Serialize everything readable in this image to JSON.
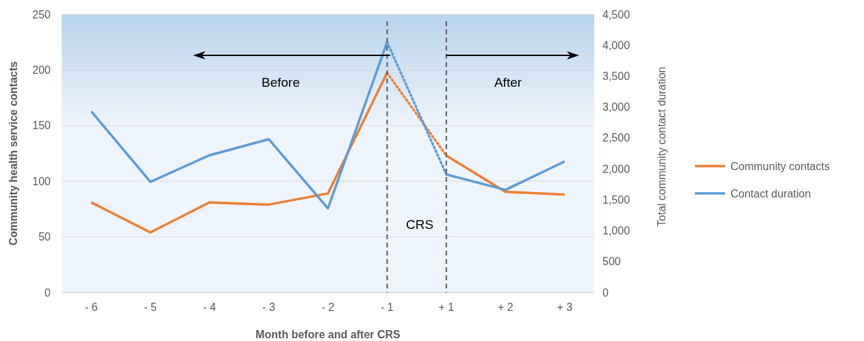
{
  "chart_data": {
    "type": "line",
    "xlabel": "Month before and after CRS",
    "ylabel": "Community health service contacts",
    "y2label": "Total community contact duration",
    "categories": [
      "- 6",
      "- 5",
      "- 4",
      "- 3",
      "- 2",
      "- 1",
      "+ 1",
      "+ 2",
      "+ 3"
    ],
    "series": [
      {
        "name": "Community contacts",
        "color": "#ed7d31",
        "values": [
          81,
          54,
          81,
          79,
          89,
          197.5,
          null,
          null,
          null
        ]
      },
      {
        "color": "#ed7d31",
        "values": [
          null,
          null,
          null,
          null,
          null,
          null,
          123,
          90.5,
          88
        ]
      },
      {
        "color": "#ed7d31",
        "line_style": "dotted",
        "values": [
          null,
          null,
          null,
          null,
          null,
          197.5,
          123,
          null,
          null
        ]
      },
      {
        "name": "Contact duration",
        "color": "#5b9bd5",
        "axis": "y2",
        "values": [
          2930,
          1790,
          2220,
          2480,
          1360,
          4050,
          null,
          null,
          null
        ]
      },
      {
        "color": "#5b9bd5",
        "axis": "y2",
        "values": [
          null,
          null,
          null,
          null,
          null,
          null,
          1910,
          1660,
          2120
        ]
      },
      {
        "color": "#5b9bd5",
        "axis": "y2",
        "line_style": "dotted",
        "values": [
          null,
          null,
          null,
          null,
          null,
          4050,
          1910,
          null,
          null
        ]
      }
    ],
    "ylim": [
      0,
      250
    ],
    "yticks": [
      0,
      50,
      100,
      150,
      200,
      250
    ],
    "y2lim": [
      0,
      4500
    ],
    "y2ticks": [
      {
        "value": 0,
        "label": "0"
      },
      {
        "value": 500,
        "label": "500"
      },
      {
        "value": 1000,
        "label": "1,000"
      },
      {
        "value": 1500,
        "label": "1,500"
      },
      {
        "value": 2000,
        "label": "2,000"
      },
      {
        "value": 2500,
        "label": "2,500"
      },
      {
        "value": 3000,
        "label": "3,000"
      },
      {
        "value": 3500,
        "label": "3,500"
      },
      {
        "value": 4000,
        "label": "4,000"
      },
      {
        "value": 4500,
        "label": "4,500"
      }
    ],
    "ref_lines": [
      {
        "axis": "x",
        "value": "- 1",
        "color": "#595959",
        "line_style": "dashed"
      },
      {
        "axis": "x",
        "value": "+ 1",
        "color": "#595959",
        "line_style": "dashed"
      }
    ],
    "annotations": [
      "Before",
      "After",
      "CRS"
    ],
    "grid": "y",
    "legend": "right",
    "line_style": "solid",
    "marker": "none"
  }
}
